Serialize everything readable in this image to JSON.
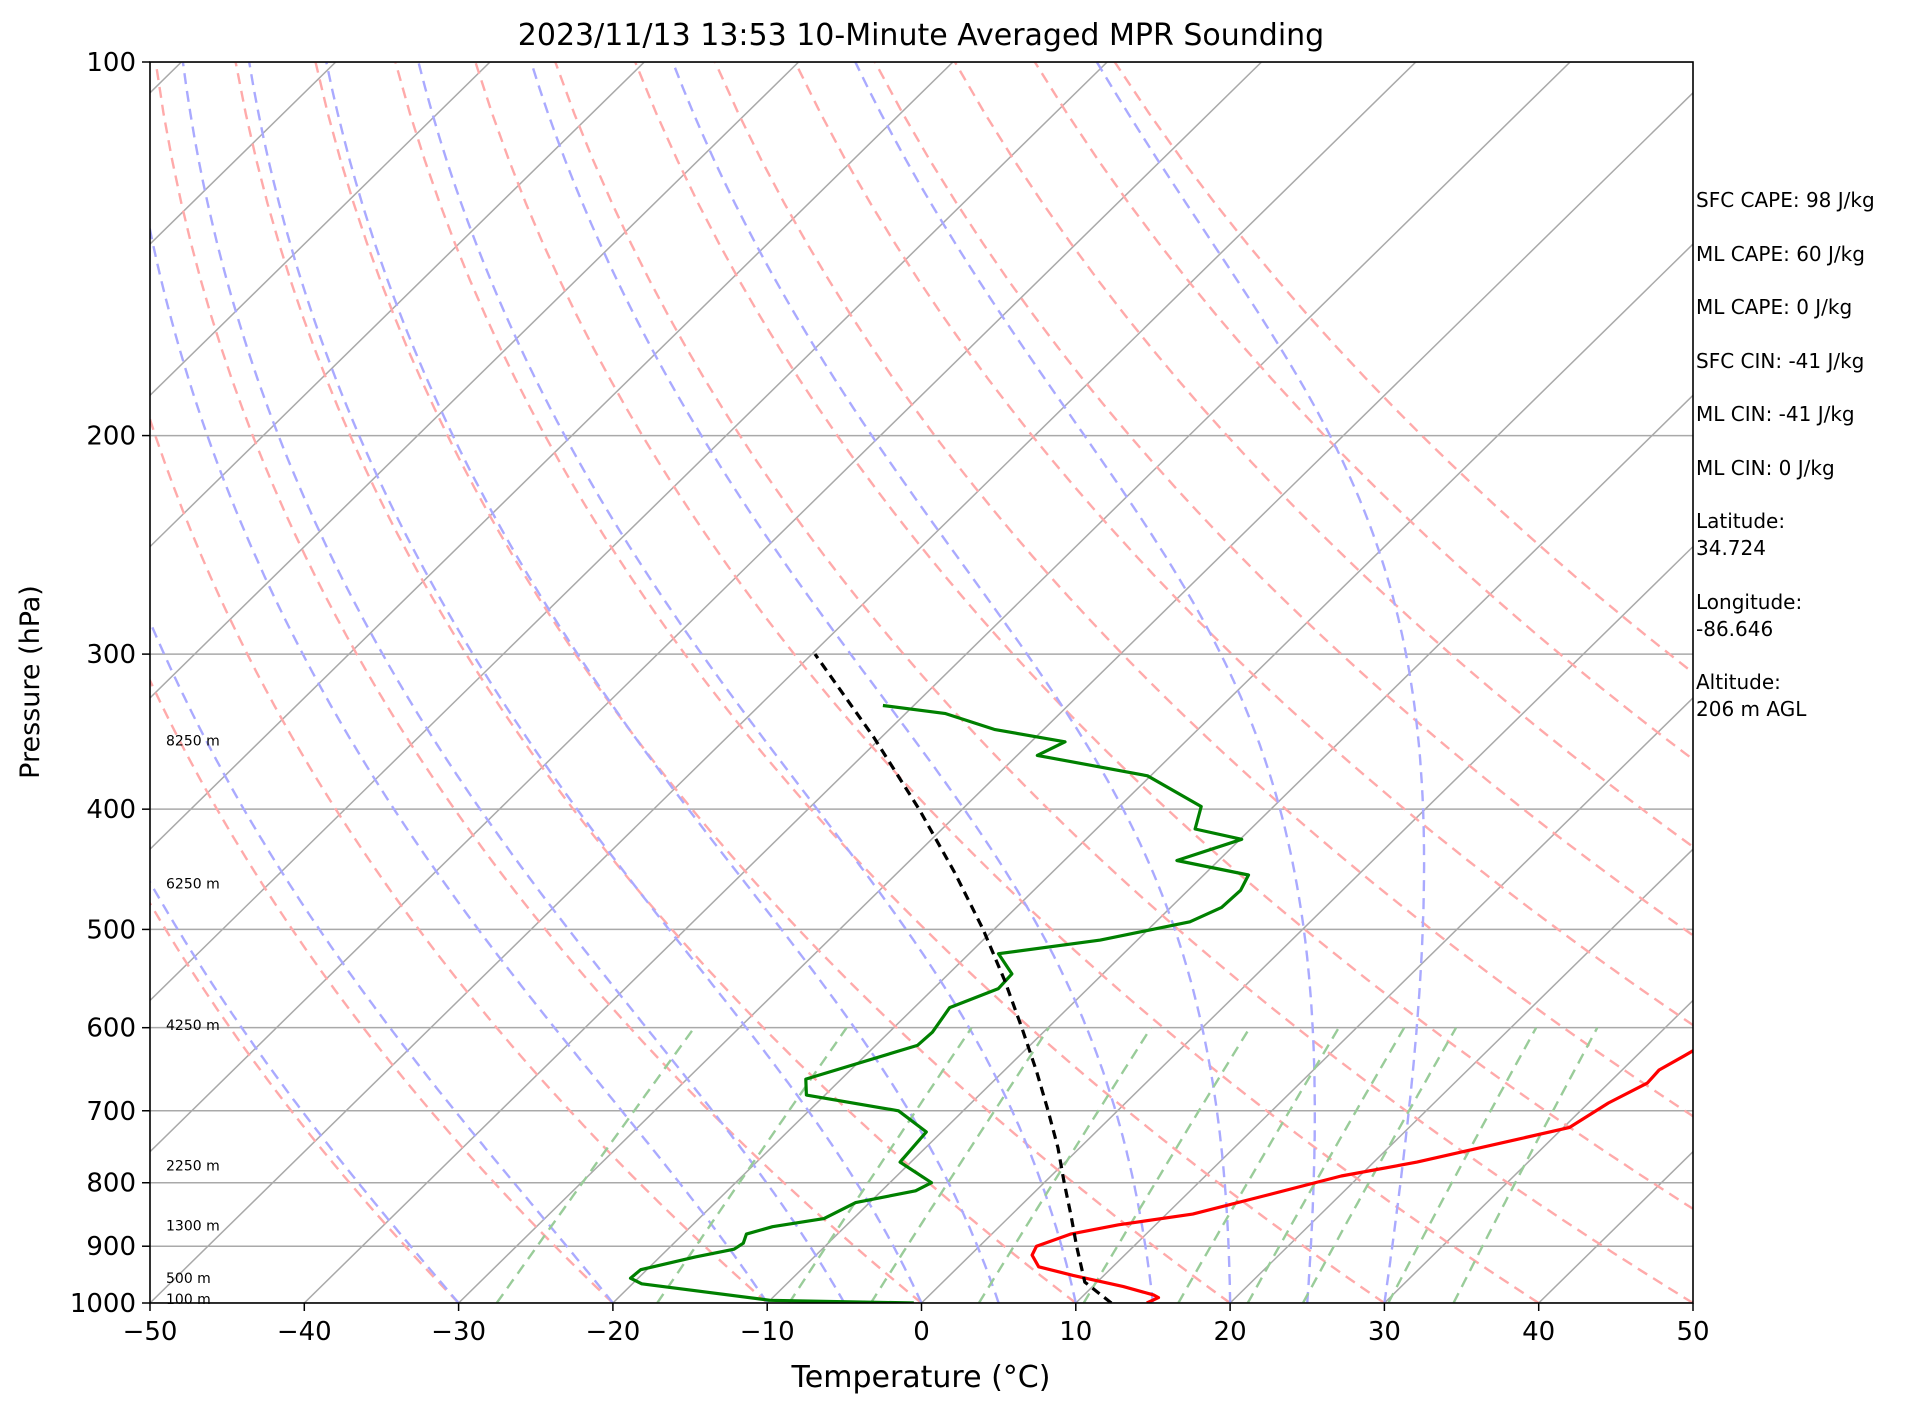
{
  "chart_data": {
    "type": "line",
    "subtype": "skew-T log-P diagram",
    "title": "2023/11/13 13:53 10-Minute Averaged MPR Sounding",
    "xlabel": "Temperature (°C)",
    "ylabel": "Pressure (hPa)",
    "xlim": [
      -50,
      50
    ],
    "ylim": [
      1000,
      100
    ],
    "y_scale": "log",
    "grid": true,
    "x_ticks": [
      -50,
      -40,
      -30,
      -20,
      -10,
      0,
      10,
      20,
      30,
      40,
      50
    ],
    "x_tick_labels": [
      "−50",
      "−40",
      "−30",
      "−20",
      "−10",
      "0",
      "10",
      "20",
      "30",
      "40",
      "50"
    ],
    "y_ticks": [
      1000,
      900,
      800,
      700,
      600,
      500,
      400,
      300,
      200,
      100
    ],
    "y_tick_labels": [
      "1000",
      "900",
      "800",
      "700",
      "600",
      "500",
      "400",
      "300",
      "200",
      "100"
    ],
    "height_labels": [
      {
        "text": "100 m",
        "p": 993
      },
      {
        "text": "500 m",
        "p": 955
      },
      {
        "text": "1300 m",
        "p": 866
      },
      {
        "text": "2250 m",
        "p": 775
      },
      {
        "text": "4250 m",
        "p": 597
      },
      {
        "text": "6250 m",
        "p": 459
      },
      {
        "text": "8250 m",
        "p": 352
      }
    ],
    "series": [
      {
        "role": "temperature",
        "color": "#ff0000",
        "points": [
          {
            "p": 1000,
            "t": 14.6
          },
          {
            "p": 990,
            "t": 15.0
          },
          {
            "p": 985,
            "t": 14.5
          },
          {
            "p": 970,
            "t": 12.0
          },
          {
            "p": 950,
            "t": 8.0
          },
          {
            "p": 935,
            "t": 5.2
          },
          {
            "p": 915,
            "t": 4.0
          },
          {
            "p": 900,
            "t": 3.7
          },
          {
            "p": 880,
            "t": 5.1
          },
          {
            "p": 865,
            "t": 7.6
          },
          {
            "p": 848,
            "t": 11.7
          },
          {
            "p": 820,
            "t": 15.1
          },
          {
            "p": 790,
            "t": 18.8
          },
          {
            "p": 770,
            "t": 22.8
          },
          {
            "p": 738,
            "t": 27.8
          },
          {
            "p": 722,
            "t": 30.4
          },
          {
            "p": 690,
            "t": 31.3
          },
          {
            "p": 665,
            "t": 32.5
          },
          {
            "p": 649,
            "t": 32.4
          },
          {
            "p": 632,
            "t": 33.1
          },
          {
            "p": 614,
            "t": 33.8
          },
          {
            "p": 598,
            "t": 34.0
          },
          {
            "p": 575,
            "t": 34.4
          },
          {
            "p": 555,
            "t": 33.6
          },
          {
            "p": 540,
            "t": 33.0
          },
          {
            "p": 523,
            "t": 32.9
          },
          {
            "p": 500,
            "t": 30.6
          },
          {
            "p": 482,
            "t": 30.6
          },
          {
            "p": 470,
            "t": 29.8
          },
          {
            "p": 440,
            "t": 26.8
          },
          {
            "p": 428,
            "t": 26.6
          },
          {
            "p": 410,
            "t": 26.5
          },
          {
            "p": 395,
            "t": 25.5
          },
          {
            "p": 375,
            "t": 23.4
          },
          {
            "p": 365,
            "t": 22.3
          },
          {
            "p": 349,
            "t": 21.7
          },
          {
            "p": 338,
            "t": 20.6
          },
          {
            "p": 325,
            "t": 19.8
          },
          {
            "p": 311,
            "t": 20.4
          },
          {
            "p": 299,
            "t": 20.0
          }
        ]
      },
      {
        "role": "dewpoint",
        "color": "#008000",
        "points": [
          {
            "p": 1000,
            "t": -0.5
          },
          {
            "p": 995,
            "t": -10.0
          },
          {
            "p": 965,
            "t": -19.4
          },
          {
            "p": 955,
            "t": -20.5
          },
          {
            "p": 940,
            "t": -20.4
          },
          {
            "p": 918,
            "t": -17.7
          },
          {
            "p": 905,
            "t": -15.7
          },
          {
            "p": 895,
            "t": -15.5
          },
          {
            "p": 880,
            "t": -15.9
          },
          {
            "p": 868,
            "t": -14.7
          },
          {
            "p": 855,
            "t": -11.9
          },
          {
            "p": 830,
            "t": -10.9
          },
          {
            "p": 812,
            "t": -7.8
          },
          {
            "p": 800,
            "t": -7.3
          },
          {
            "p": 770,
            "t": -10.7
          },
          {
            "p": 728,
            "t": -11.0
          },
          {
            "p": 700,
            "t": -14.2
          },
          {
            "p": 680,
            "t": -21.2
          },
          {
            "p": 660,
            "t": -22.3
          },
          {
            "p": 620,
            "t": -17.3
          },
          {
            "p": 605,
            "t": -17.2
          },
          {
            "p": 578,
            "t": -17.7
          },
          {
            "p": 558,
            "t": -15.8
          },
          {
            "p": 543,
            "t": -15.9
          },
          {
            "p": 523,
            "t": -18.1
          },
          {
            "p": 510,
            "t": -12.4
          },
          {
            "p": 493,
            "t": -7.8
          },
          {
            "p": 480,
            "t": -6.7
          },
          {
            "p": 465,
            "t": -6.6
          },
          {
            "p": 452,
            "t": -7.1
          },
          {
            "p": 440,
            "t": -12.7
          },
          {
            "p": 423,
            "t": -9.9
          },
          {
            "p": 415,
            "t": -13.6
          },
          {
            "p": 398,
            "t": -14.7
          },
          {
            "p": 376,
            "t": -20.2
          },
          {
            "p": 362,
            "t": -28.7
          },
          {
            "p": 353,
            "t": -27.8
          },
          {
            "p": 345,
            "t": -33.2
          },
          {
            "p": 335,
            "t": -37.4
          },
          {
            "p": 330,
            "t": -42.0
          }
        ]
      },
      {
        "role": "parcel-path",
        "color": "#000000",
        "dashed": true,
        "points": [
          {
            "p": 1000,
            "t": 12.3
          },
          {
            "p": 962,
            "t": 9.2
          },
          {
            "p": 900,
            "t": 6.3
          },
          {
            "p": 850,
            "t": 3.9
          },
          {
            "p": 800,
            "t": 1.3
          },
          {
            "p": 750,
            "t": -1.4
          },
          {
            "p": 700,
            "t": -4.5
          },
          {
            "p": 650,
            "t": -7.9
          },
          {
            "p": 600,
            "t": -11.7
          },
          {
            "p": 550,
            "t": -15.9
          },
          {
            "p": 500,
            "t": -20.7
          },
          {
            "p": 450,
            "t": -26.3
          },
          {
            "p": 400,
            "t": -32.8
          },
          {
            "p": 350,
            "t": -40.5
          },
          {
            "p": 300,
            "t": -49.8
          }
        ]
      }
    ],
    "reference_lines": {
      "isotherms_C": [
        -150,
        -140,
        -130,
        -120,
        -110,
        -100,
        -90,
        -80,
        -70,
        -60,
        -50,
        -40,
        -30,
        -20,
        -10,
        0,
        10,
        20,
        30,
        40,
        50
      ],
      "dry_adiabats_C": [
        -30,
        -20,
        -10,
        0,
        10,
        20,
        30,
        40,
        50,
        60,
        70,
        80,
        90,
        100,
        110,
        120
      ],
      "moist_adiabats_C": [
        -30,
        -20,
        -10,
        -5,
        0,
        5,
        10,
        15,
        20,
        25,
        30
      ],
      "mixing_ratio_lines_gkg": [
        0.4,
        1,
        2,
        3,
        5,
        8,
        12,
        16,
        20,
        28,
        36
      ],
      "isotherm_color": "#a9a9a9",
      "dry_adiabat_color": "#ffaaaa",
      "moist_adiabat_color": "#aaaaff",
      "mixing_ratio_color": "#99cc99"
    }
  },
  "side_panel": {
    "sfc_cape": "SFC CAPE: 98 J/kg",
    "ml_cape": "ML CAPE: 60 J/kg",
    "ml_cape_2": "ML CAPE: 0 J/kg",
    "sfc_cin": "SFC CIN: -41 J/kg",
    "ml_cin": "ML CIN: -41 J/kg",
    "ml_cin_2": "ML CIN: 0 J/kg",
    "latitude": "Latitude:\n34.724",
    "longitude": "Longitude:\n-86.646",
    "altitude": "Altitude:\n206 m AGL"
  }
}
